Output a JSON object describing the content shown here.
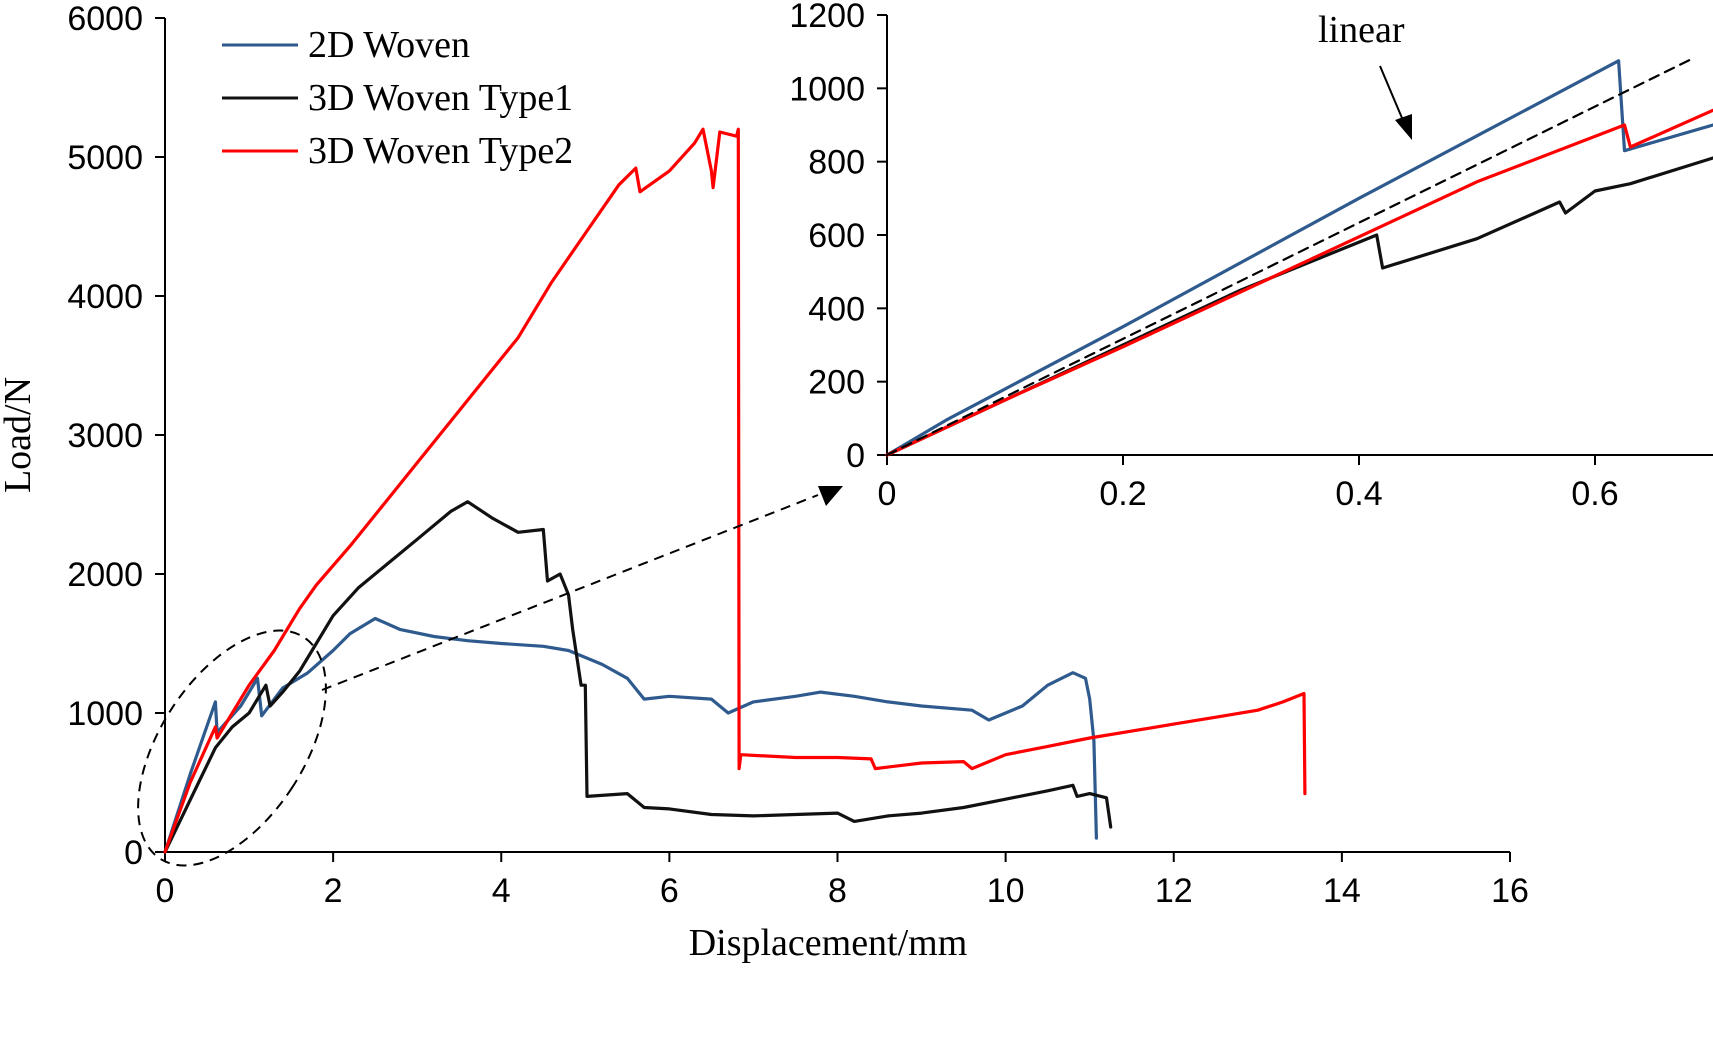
{
  "chart_data": [
    {
      "id": "main",
      "type": "line",
      "xlabel": "Displacement/mm",
      "ylabel": "Load/N",
      "xlim": [
        0,
        16
      ],
      "ylim": [
        0,
        6000
      ],
      "xticks": [
        0,
        2,
        4,
        6,
        8,
        10,
        12,
        14,
        16
      ],
      "yticks": [
        0,
        1000,
        2000,
        3000,
        4000,
        5000,
        6000
      ],
      "legend_position": "top-left",
      "series": [
        {
          "name": "2D Woven",
          "color": "#2E5A8E",
          "points": [
            [
              0,
              0
            ],
            [
              0.3,
              560
            ],
            [
              0.6,
              1080
            ],
            [
              0.62,
              860
            ],
            [
              0.9,
              1050
            ],
            [
              1.1,
              1250
            ],
            [
              1.15,
              980
            ],
            [
              1.4,
              1180
            ],
            [
              1.7,
              1290
            ],
            [
              2.0,
              1450
            ],
            [
              2.2,
              1570
            ],
            [
              2.5,
              1680
            ],
            [
              2.8,
              1600
            ],
            [
              3.2,
              1550
            ],
            [
              3.6,
              1520
            ],
            [
              4.0,
              1500
            ],
            [
              4.5,
              1480
            ],
            [
              4.8,
              1450
            ],
            [
              5.2,
              1350
            ],
            [
              5.5,
              1250
            ],
            [
              5.7,
              1100
            ],
            [
              6.0,
              1120
            ],
            [
              6.5,
              1100
            ],
            [
              6.7,
              1000
            ],
            [
              7.0,
              1080
            ],
            [
              7.5,
              1120
            ],
            [
              7.8,
              1150
            ],
            [
              8.2,
              1120
            ],
            [
              8.6,
              1080
            ],
            [
              9.0,
              1050
            ],
            [
              9.6,
              1020
            ],
            [
              9.8,
              950
            ],
            [
              10.2,
              1050
            ],
            [
              10.5,
              1200
            ],
            [
              10.8,
              1290
            ],
            [
              10.95,
              1250
            ],
            [
              11.0,
              1100
            ],
            [
              11.05,
              800
            ],
            [
              11.08,
              100
            ]
          ]
        },
        {
          "name": "3D Woven Type1",
          "color": "#111111",
          "points": [
            [
              0,
              0
            ],
            [
              0.2,
              250
            ],
            [
              0.4,
              500
            ],
            [
              0.6,
              750
            ],
            [
              0.8,
              900
            ],
            [
              1.0,
              1000
            ],
            [
              1.1,
              1100
            ],
            [
              1.2,
              1200
            ],
            [
              1.25,
              1050
            ],
            [
              1.4,
              1150
            ],
            [
              1.6,
              1300
            ],
            [
              1.8,
              1500
            ],
            [
              2.0,
              1700
            ],
            [
              2.3,
              1900
            ],
            [
              2.6,
              2050
            ],
            [
              3.0,
              2250
            ],
            [
              3.4,
              2450
            ],
            [
              3.6,
              2520
            ],
            [
              3.9,
              2400
            ],
            [
              4.2,
              2300
            ],
            [
              4.5,
              2320
            ],
            [
              4.55,
              1950
            ],
            [
              4.7,
              2000
            ],
            [
              4.8,
              1850
            ],
            [
              4.85,
              1600
            ],
            [
              4.9,
              1400
            ],
            [
              4.95,
              1200
            ],
            [
              5.0,
              1200
            ],
            [
              5.02,
              400
            ],
            [
              5.5,
              420
            ],
            [
              5.7,
              320
            ],
            [
              6.0,
              310
            ],
            [
              6.5,
              270
            ],
            [
              7.0,
              260
            ],
            [
              7.5,
              270
            ],
            [
              8.0,
              280
            ],
            [
              8.2,
              220
            ],
            [
              8.6,
              260
            ],
            [
              9.0,
              280
            ],
            [
              9.5,
              320
            ],
            [
              10.0,
              380
            ],
            [
              10.5,
              440
            ],
            [
              10.8,
              480
            ],
            [
              10.85,
              400
            ],
            [
              11.0,
              420
            ],
            [
              11.2,
              390
            ],
            [
              11.25,
              180
            ]
          ]
        },
        {
          "name": "3D Woven Type2",
          "color": "#FF0000",
          "points": [
            [
              0,
              0
            ],
            [
              0.3,
              500
            ],
            [
              0.6,
              900
            ],
            [
              0.62,
              820
            ],
            [
              0.9,
              1100
            ],
            [
              1.0,
              1200
            ],
            [
              1.3,
              1450
            ],
            [
              1.6,
              1750
            ],
            [
              1.8,
              1920
            ],
            [
              2.2,
              2200
            ],
            [
              2.6,
              2500
            ],
            [
              3.0,
              2800
            ],
            [
              3.4,
              3100
            ],
            [
              3.8,
              3400
            ],
            [
              4.2,
              3700
            ],
            [
              4.6,
              4100
            ],
            [
              5.0,
              4450
            ],
            [
              5.4,
              4800
            ],
            [
              5.6,
              4920
            ],
            [
              5.65,
              4750
            ],
            [
              6.0,
              4900
            ],
            [
              6.3,
              5100
            ],
            [
              6.4,
              5200
            ],
            [
              6.5,
              4900
            ],
            [
              6.52,
              4780
            ],
            [
              6.6,
              5180
            ],
            [
              6.8,
              5150
            ],
            [
              6.82,
              5200
            ],
            [
              6.83,
              600
            ],
            [
              6.85,
              700
            ],
            [
              7.5,
              680
            ],
            [
              8.0,
              680
            ],
            [
              8.4,
              670
            ],
            [
              8.45,
              600
            ],
            [
              9.0,
              640
            ],
            [
              9.5,
              650
            ],
            [
              9.6,
              600
            ],
            [
              10.0,
              700
            ],
            [
              10.5,
              760
            ],
            [
              11.0,
              820
            ],
            [
              11.5,
              870
            ],
            [
              12.0,
              920
            ],
            [
              12.5,
              970
            ],
            [
              13.0,
              1020
            ],
            [
              13.3,
              1080
            ],
            [
              13.55,
              1140
            ],
            [
              13.56,
              420
            ]
          ]
        }
      ]
    },
    {
      "id": "inset",
      "type": "line",
      "xlim": [
        0,
        0.7
      ],
      "ylim": [
        0,
        1200
      ],
      "xticks": [
        0,
        0.2,
        0.4,
        0.6
      ],
      "yticks": [
        0,
        200,
        400,
        600,
        800,
        1000,
        1200
      ],
      "annotation": "linear",
      "series": [
        {
          "name": "2D Woven",
          "color": "#2E5A8E",
          "points": [
            [
              0,
              0
            ],
            [
              0.05,
              95
            ],
            [
              0.2,
              350
            ],
            [
              0.4,
              700
            ],
            [
              0.62,
              1075
            ],
            [
              0.625,
              830
            ],
            [
              0.7,
              900
            ]
          ]
        },
        {
          "name": "3D Woven Type1",
          "color": "#111111",
          "points": [
            [
              0,
              0
            ],
            [
              0.1,
              150
            ],
            [
              0.2,
              300
            ],
            [
              0.3,
              450
            ],
            [
              0.415,
              600
            ],
            [
              0.42,
              510
            ],
            [
              0.5,
              590
            ],
            [
              0.57,
              690
            ],
            [
              0.575,
              660
            ],
            [
              0.6,
              720
            ],
            [
              0.63,
              740
            ],
            [
              0.7,
              810
            ]
          ]
        },
        {
          "name": "3D Woven Type2",
          "color": "#FF0000",
          "points": [
            [
              0,
              0
            ],
            [
              0.1,
              150
            ],
            [
              0.2,
              295
            ],
            [
              0.3,
              445
            ],
            [
              0.4,
              595
            ],
            [
              0.5,
              745
            ],
            [
              0.625,
              900
            ],
            [
              0.63,
              840
            ],
            [
              0.7,
              940
            ]
          ]
        },
        {
          "name": "linear",
          "dashed": true,
          "color": "#000000",
          "points": [
            [
              0,
              0
            ],
            [
              0.685,
              1085
            ]
          ]
        }
      ]
    }
  ]
}
